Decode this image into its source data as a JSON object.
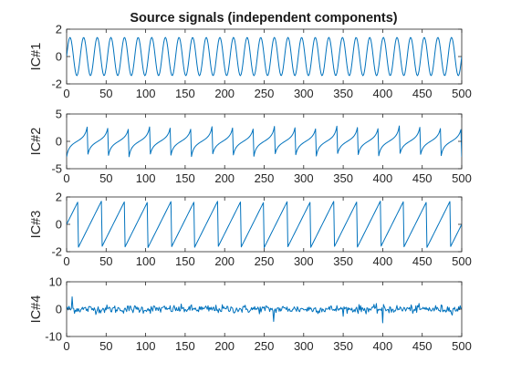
{
  "chart_data": [
    {
      "type": "line",
      "title": "Source signals (independent components)",
      "ylabel": "IC#1",
      "xlim": [
        0,
        500
      ],
      "ylim": [
        -2,
        2
      ],
      "xticks": [
        "0",
        "50",
        "100",
        "150",
        "200",
        "250",
        "300",
        "350",
        "400",
        "450",
        "500"
      ],
      "yticks": [
        "2",
        "0",
        "-2"
      ],
      "signal": "sine",
      "amplitude": 1.4,
      "cycles": 29,
      "color": "#0072bd"
    },
    {
      "type": "line",
      "title": "",
      "ylabel": "IC#2",
      "xlim": [
        0,
        500
      ],
      "ylim": [
        -5,
        5
      ],
      "xticks": [
        "0",
        "50",
        "100",
        "150",
        "200",
        "250",
        "300",
        "350",
        "400",
        "450",
        "500"
      ],
      "yticks": [
        "5",
        "0",
        "-5"
      ],
      "signal": "tangent-like",
      "amplitude": 3,
      "cycles": 19,
      "color": "#0072bd"
    },
    {
      "type": "line",
      "title": "",
      "ylabel": "IC#3",
      "xlim": [
        0,
        500
      ],
      "ylim": [
        -2,
        2
      ],
      "xticks": [
        "0",
        "50",
        "100",
        "150",
        "200",
        "250",
        "300",
        "350",
        "400",
        "450",
        "500"
      ],
      "yticks": [
        "2",
        "0",
        "-2"
      ],
      "signal": "sawtooth",
      "amplitude": 1.7,
      "cycles": 17,
      "color": "#0072bd"
    },
    {
      "type": "line",
      "title": "",
      "ylabel": "IC#4",
      "xlim": [
        0,
        500
      ],
      "ylim": [
        -10,
        10
      ],
      "xticks": [
        "0",
        "50",
        "100",
        "150",
        "200",
        "250",
        "300",
        "350",
        "400",
        "450",
        "500"
      ],
      "yticks": [
        "10",
        "0",
        "-10"
      ],
      "signal": "noise",
      "amplitude": 1,
      "spikes": [
        {
          "x": 7,
          "y": 4.5
        },
        {
          "x": 262,
          "y": -4.5
        },
        {
          "x": 400,
          "y": -5
        }
      ],
      "color": "#0072bd"
    }
  ]
}
